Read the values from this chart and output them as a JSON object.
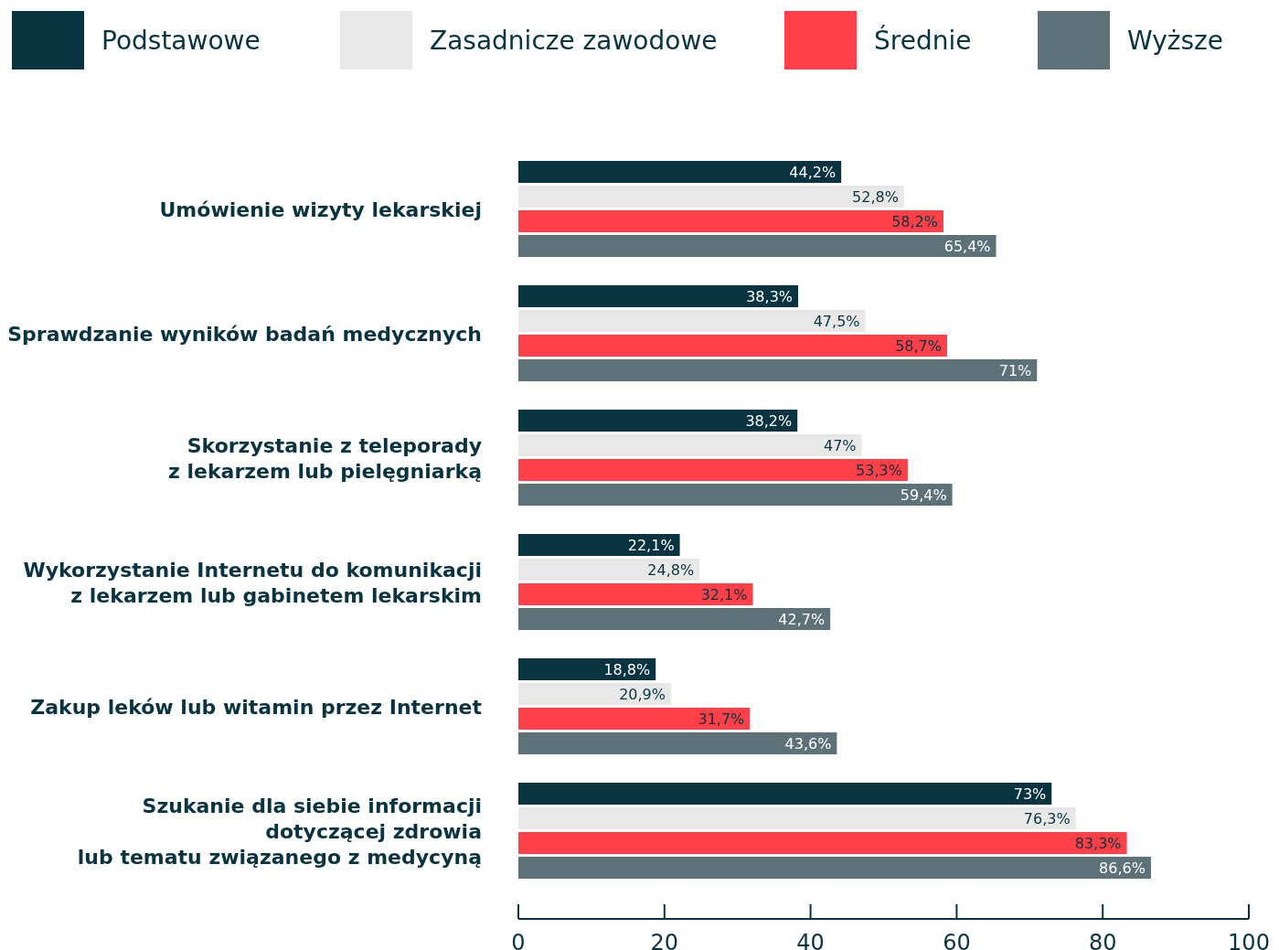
{
  "chart_data": {
    "type": "bar",
    "orientation": "horizontal",
    "legend": "top",
    "categories": [
      "Umówienie wizyty lekarskiej",
      "Sprawdzanie wyników badań medycznych",
      "Skorzystanie z teleporady\nz lekarzem lub pielęgniarką",
      "Wykorzystanie Internetu do komunikacji\nz lekarzem lub gabinetem lekarskim",
      "Zakup leków lub witamin przez Internet",
      "Szukanie dla siebie informacji\ndotyczącej zdrowia\nlub tematu związanego z medycyną"
    ],
    "series": [
      {
        "name": "Podstawowe",
        "color": "#083441",
        "values": [
          44.2,
          38.3,
          38.2,
          22.1,
          18.8,
          73
        ],
        "value_labels": [
          "44,2%",
          "38,3%",
          "38,2%",
          "22,1%",
          "18,8%",
          "73%"
        ]
      },
      {
        "name": "Zasadnicze zawodowe",
        "color": "#e8e8e8",
        "values": [
          52.8,
          47.5,
          47,
          24.8,
          20.9,
          76.3
        ],
        "value_labels": [
          "52,8%",
          "47,5%",
          "47%",
          "24,8%",
          "20,9%",
          "76,3%"
        ]
      },
      {
        "name": "Średnie",
        "color": "#ff4048",
        "values": [
          58.2,
          58.7,
          53.3,
          32.1,
          31.7,
          83.3
        ],
        "value_labels": [
          "58,2%",
          "58,7%",
          "53,3%",
          "32,1%",
          "31,7%",
          "83,3%"
        ]
      },
      {
        "name": "Wyższe",
        "color": "#5c7178",
        "values": [
          65.4,
          71,
          59.4,
          42.7,
          43.6,
          86.6
        ],
        "value_labels": [
          "65,4%",
          "71%",
          "59,4%",
          "42,7%",
          "43,6%",
          "86,6%"
        ]
      }
    ],
    "xlim": [
      0,
      100
    ],
    "xticks": [
      0,
      20,
      40,
      60,
      80,
      100
    ]
  }
}
